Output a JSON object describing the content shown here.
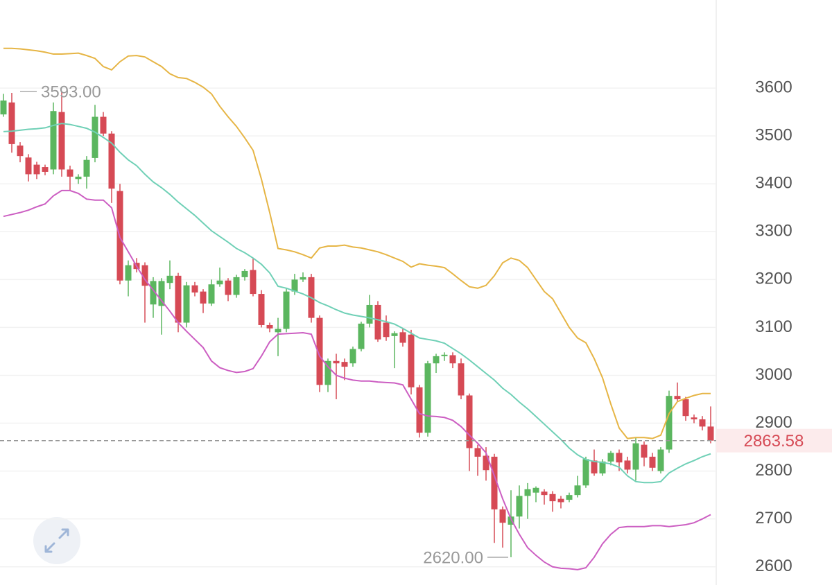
{
  "chart_data": {
    "type": "candlestick",
    "open": [
      3545,
      3570,
      3480,
      3455,
      3440,
      3435,
      3430,
      3550,
      3430,
      3410,
      3415,
      3454,
      3540,
      3505,
      3385,
      3198,
      3235,
      3230,
      3148,
      3145,
      3193,
      3208,
      3110,
      3188,
      3175,
      3150,
      3190,
      3198,
      3168,
      3205,
      3220,
      3170,
      3105,
      3090,
      3097,
      3175,
      3200,
      3205,
      3120,
      2980,
      3030,
      3028,
      3025,
      3055,
      3108,
      3147,
      3110,
      3082,
      3090,
      3085,
      2975,
      2880,
      3025,
      3040,
      3042,
      3025,
      2958,
      2848,
      2832,
      2830,
      2720,
      2688,
      2705,
      2748,
      2755,
      2757,
      2752,
      2742,
      2740,
      2750,
      2770,
      2822,
      2795,
      2820,
      2838,
      2822,
      2803,
      2855,
      2830,
      2800,
      2845,
      2957,
      2950,
      2912,
      2908,
      2893
    ],
    "high": [
      3588,
      3590,
      3487,
      3462,
      3446,
      3440,
      3570,
      3593,
      3438,
      3420,
      3458,
      3565,
      3550,
      3510,
      3400,
      3240,
      3245,
      3236,
      3205,
      3203,
      3240,
      3214,
      3195,
      3195,
      3180,
      3200,
      3225,
      3203,
      3210,
      3222,
      3245,
      3178,
      3110,
      3120,
      3182,
      3212,
      3215,
      3212,
      3125,
      3035,
      3045,
      3035,
      3060,
      3112,
      3168,
      3155,
      3125,
      3092,
      3098,
      3095,
      2980,
      3030,
      3045,
      3048,
      3048,
      3035,
      2962,
      2855,
      2850,
      2836,
      2726,
      2760,
      2770,
      2775,
      2768,
      2762,
      2758,
      2748,
      2755,
      2790,
      2830,
      2845,
      2825,
      2842,
      2845,
      2830,
      2870,
      2862,
      2838,
      2850,
      2968,
      2985,
      2955,
      2918,
      2915,
      2935
    ],
    "low": [
      3540,
      3465,
      3445,
      3405,
      3410,
      3418,
      3420,
      3415,
      3385,
      3400,
      3390,
      3445,
      3500,
      3360,
      3190,
      3165,
      3215,
      3110,
      3120,
      3085,
      3180,
      3090,
      3100,
      3165,
      3130,
      3145,
      3185,
      3155,
      3162,
      3198,
      3165,
      3100,
      3090,
      3040,
      3090,
      3168,
      3195,
      3110,
      2965,
      2965,
      2950,
      2990,
      3018,
      3050,
      3100,
      3070,
      3072,
      3015,
      3060,
      2960,
      2870,
      2872,
      3005,
      3030,
      3015,
      2950,
      2800,
      2790,
      2780,
      2650,
      2640,
      2620,
      2680,
      2700,
      2735,
      2730,
      2715,
      2722,
      2735,
      2745,
      2765,
      2790,
      2790,
      2812,
      2800,
      2795,
      2780,
      2810,
      2800,
      2795,
      2838,
      2945,
      2905,
      2900,
      2885,
      2858
    ],
    "close": [
      3574,
      3483,
      3458,
      3420,
      3420,
      3425,
      3552,
      3430,
      3415,
      3415,
      3450,
      3540,
      3505,
      3390,
      3198,
      3230,
      3222,
      3187,
      3197,
      3197,
      3208,
      3110,
      3188,
      3173,
      3150,
      3190,
      3198,
      3168,
      3205,
      3218,
      3170,
      3105,
      3098,
      3097,
      3175,
      3200,
      3205,
      3120,
      2980,
      3030,
      3025,
      3018,
      3055,
      3108,
      3147,
      3075,
      3080,
      3088,
      3068,
      2975,
      2880,
      3025,
      3040,
      3043,
      3025,
      2958,
      2848,
      2830,
      2802,
      2720,
      2692,
      2705,
      2748,
      2762,
      2765,
      2750,
      2737,
      2735,
      2750,
      2770,
      2825,
      2795,
      2820,
      2838,
      2818,
      2803,
      2858,
      2828,
      2807,
      2845,
      2957,
      2950,
      2915,
      2908,
      2893,
      2863.58
    ],
    "up_color": "#5bb65f",
    "down_color": "#d64a55",
    "bands": [
      {
        "color": "#e6b545",
        "values": [
          3683,
          3683,
          3682,
          3680,
          3678,
          3675,
          3671,
          3671,
          3672,
          3673,
          3668,
          3662,
          3645,
          3638,
          3655,
          3667,
          3668,
          3665,
          3655,
          3645,
          3630,
          3622,
          3620,
          3612,
          3602,
          3588,
          3562,
          3540,
          3520,
          3496,
          3470,
          3410,
          3340,
          3265,
          3262,
          3258,
          3252,
          3245,
          3266,
          3270,
          3270,
          3272,
          3268,
          3266,
          3262,
          3258,
          3252,
          3245,
          3238,
          3226,
          3233,
          3230,
          3228,
          3225,
          3212,
          3198,
          3185,
          3182,
          3188,
          3208,
          3235,
          3245,
          3240,
          3225,
          3200,
          3175,
          3160,
          3130,
          3100,
          3078,
          3068,
          3035,
          2995,
          2940,
          2890,
          2868,
          2870,
          2870,
          2868,
          2875,
          2920,
          2945,
          2952,
          2958,
          2962,
          2962
        ]
      },
      {
        "color": "#6fd0b6",
        "values": [
          3509,
          3510,
          3512,
          3514,
          3515,
          3517,
          3522,
          3526,
          3524,
          3520,
          3516,
          3508,
          3497,
          3485,
          3466,
          3450,
          3438,
          3420,
          3404,
          3392,
          3378,
          3362,
          3348,
          3334,
          3318,
          3302,
          3290,
          3278,
          3265,
          3256,
          3245,
          3232,
          3214,
          3186,
          3182,
          3176,
          3170,
          3162,
          3152,
          3145,
          3137,
          3130,
          3126,
          3123,
          3120,
          3116,
          3112,
          3107,
          3098,
          3088,
          3078,
          3075,
          3072,
          3067,
          3056,
          3045,
          3032,
          3018,
          3004,
          2990,
          2973,
          2960,
          2944,
          2930,
          2914,
          2898,
          2882,
          2866,
          2848,
          2834,
          2824,
          2820,
          2818,
          2815,
          2808,
          2790,
          2778,
          2776,
          2776,
          2778,
          2796,
          2806,
          2815,
          2822,
          2830,
          2836
        ]
      },
      {
        "color": "#cc5ec2",
        "values": [
          3332,
          3336,
          3340,
          3345,
          3352,
          3358,
          3375,
          3386,
          3386,
          3380,
          3368,
          3366,
          3366,
          3350,
          3288,
          3258,
          3228,
          3200,
          3178,
          3156,
          3134,
          3110,
          3092,
          3075,
          3058,
          3030,
          3016,
          3010,
          3006,
          3008,
          3014,
          3040,
          3070,
          3086,
          3087,
          3088,
          3089,
          3086,
          3040,
          3018,
          3000,
          2994,
          2990,
          2988,
          2988,
          2986,
          2985,
          2984,
          2980,
          2950,
          2920,
          2915,
          2914,
          2912,
          2906,
          2893,
          2875,
          2858,
          2838,
          2790,
          2742,
          2700,
          2668,
          2640,
          2624,
          2610,
          2600,
          2597,
          2596,
          2594,
          2598,
          2620,
          2648,
          2668,
          2682,
          2684,
          2684,
          2684,
          2686,
          2686,
          2684,
          2686,
          2688,
          2692,
          2700,
          2709
        ]
      }
    ],
    "ylim": [
      2562,
      3784
    ],
    "yticks": [
      2600,
      2700,
      2800,
      2900,
      3000,
      3100,
      3200,
      3300,
      3400,
      3500,
      3600
    ],
    "grid": true,
    "high_annotation": {
      "value": 3593,
      "label": "3593.00"
    },
    "low_annotation": {
      "value": 2620,
      "label": "2620.00"
    },
    "last_price": {
      "value": 2863.58,
      "label": "2863.58"
    }
  }
}
